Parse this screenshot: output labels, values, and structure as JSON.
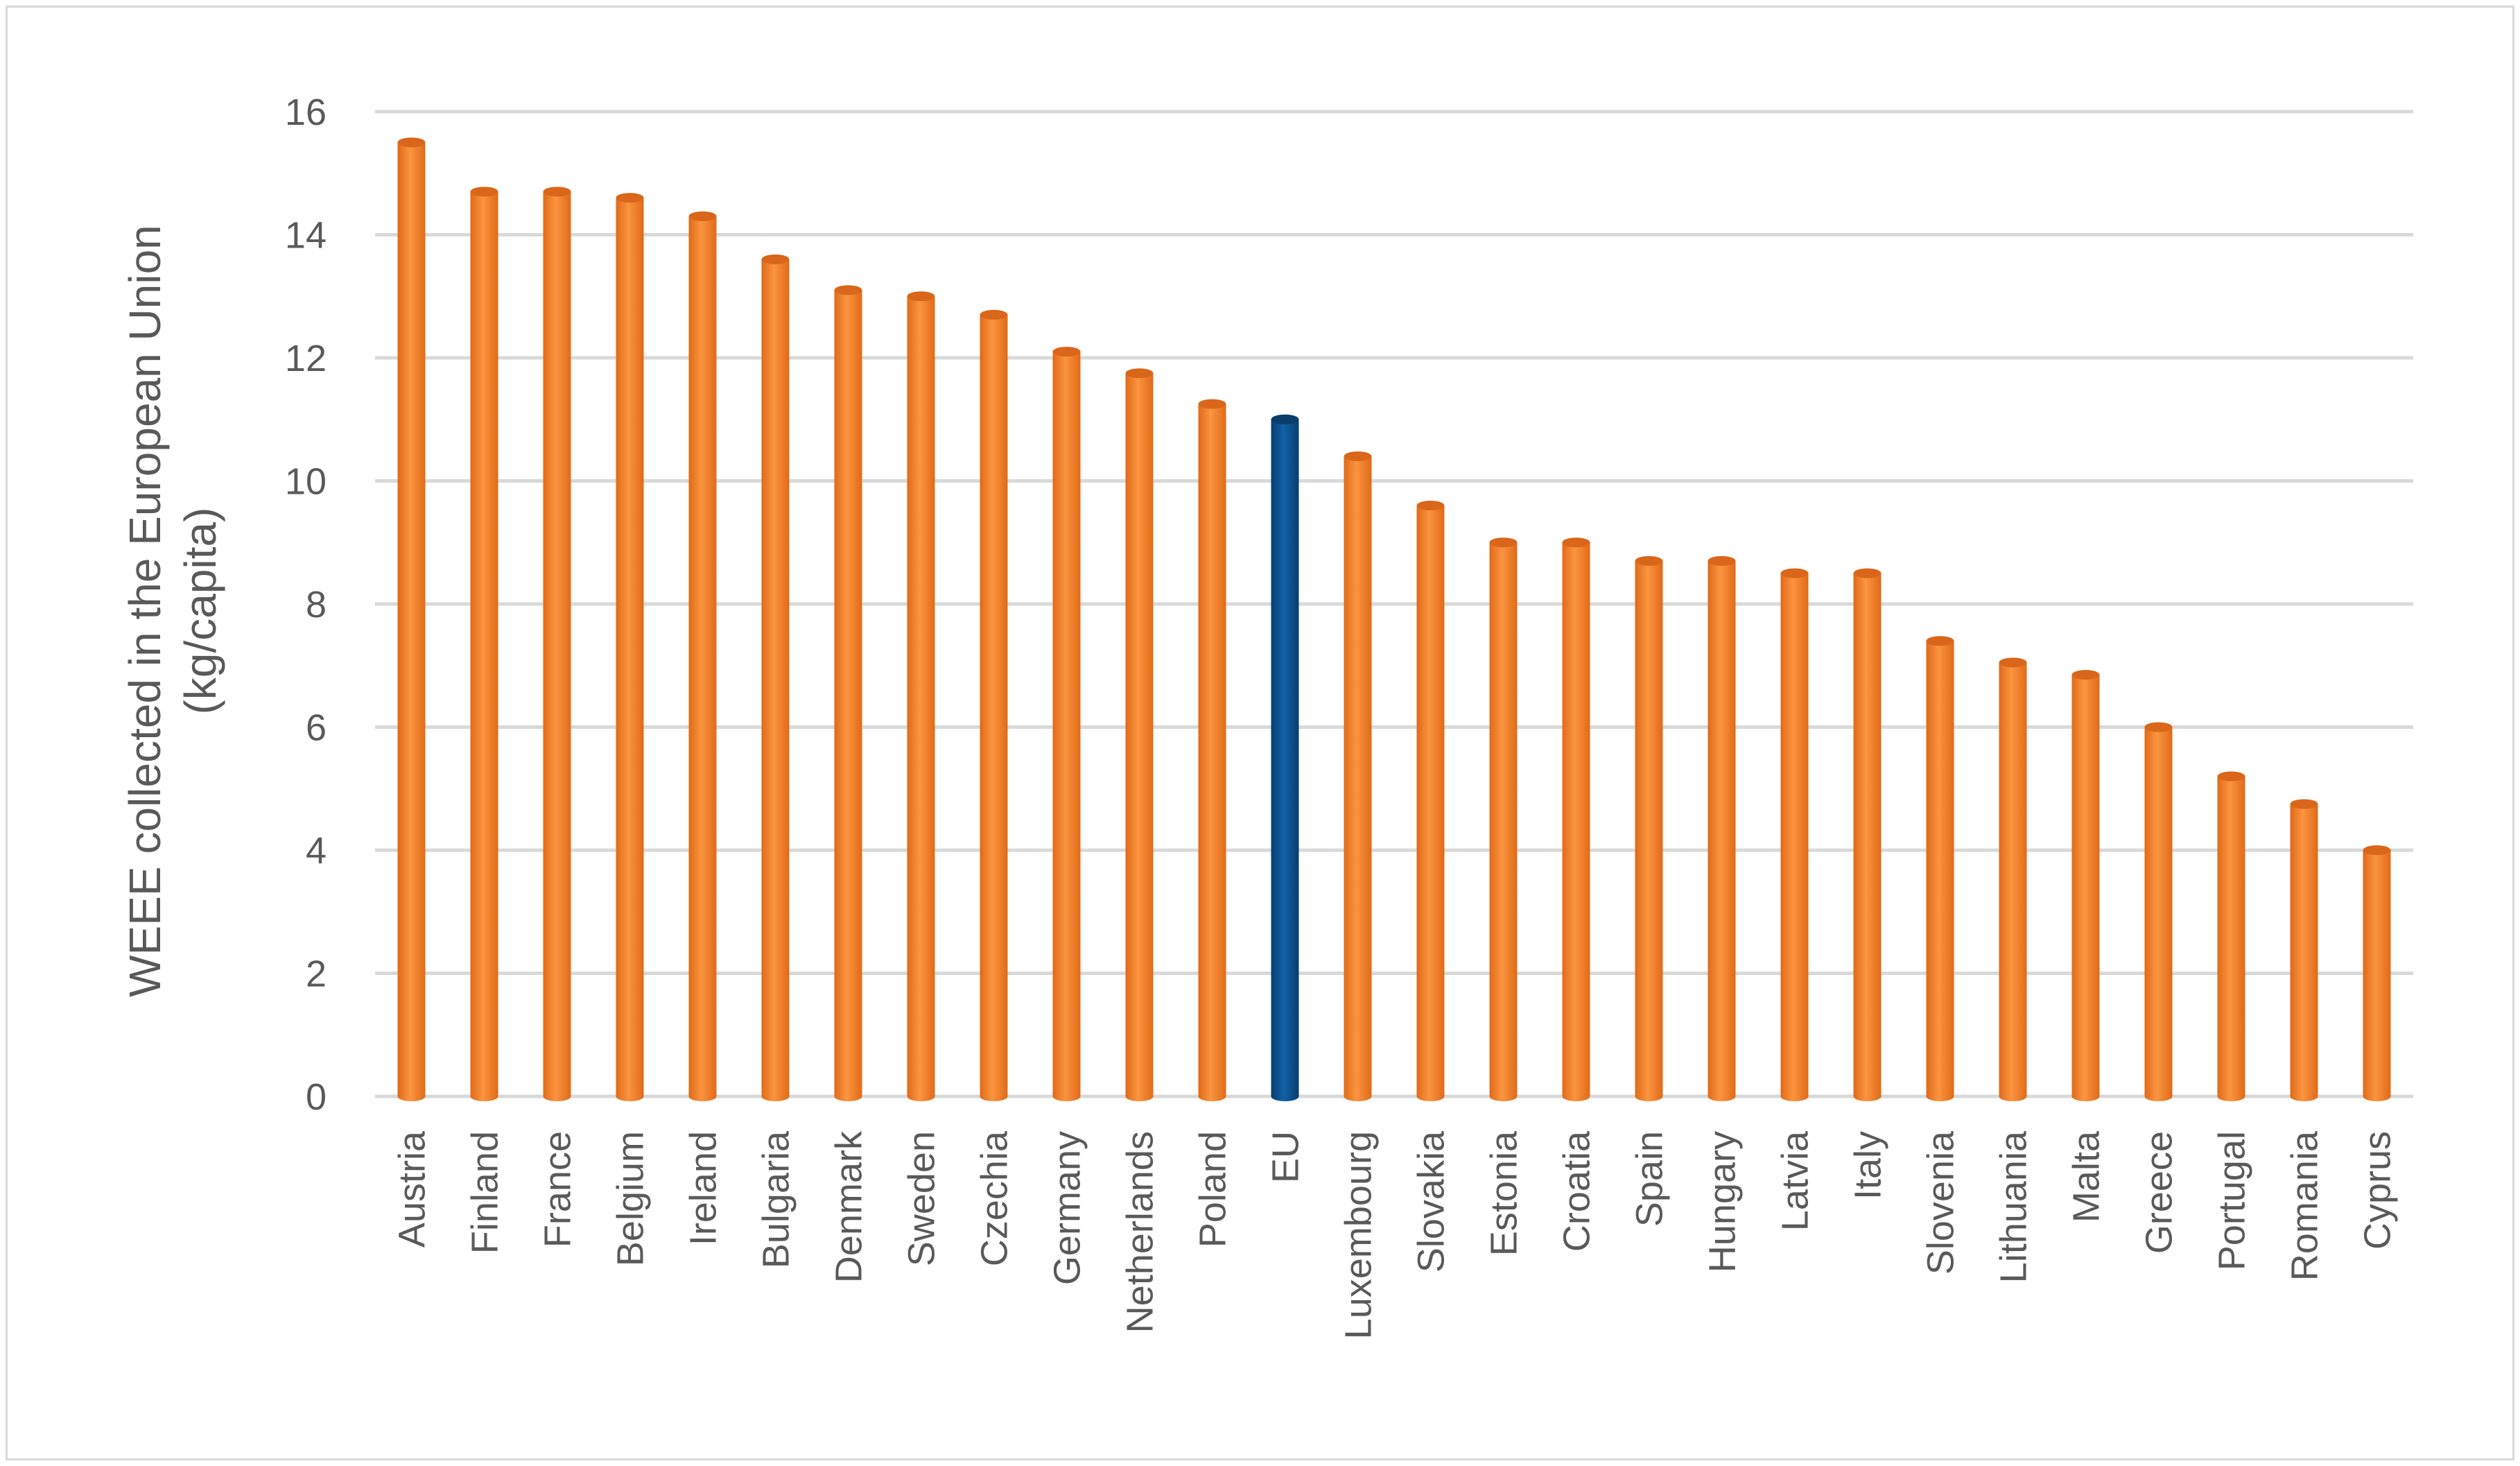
{
  "chart_data": {
    "type": "bar",
    "title": "",
    "xlabel": "",
    "ylabel_line1": "WEEE collected in the European Union",
    "ylabel_line2": "(kg/capita)",
    "ylim": [
      0,
      16
    ],
    "yticks": [
      0,
      2,
      4,
      6,
      8,
      10,
      12,
      14,
      16
    ],
    "grid": true,
    "legend": "none",
    "categories": [
      "Austria",
      "Finland",
      "France",
      "Belgium",
      "Ireland",
      "Bulgaria",
      "Denmark",
      "Sweden",
      "Czechia",
      "Germany",
      "Netherlands",
      "Poland",
      "EU",
      "Luxembourg",
      "Slovakia",
      "Estonia",
      "Croatia",
      "Spain",
      "Hungary",
      "Latvia",
      "Italy",
      "Slovenia",
      "Lithuania",
      "Malta",
      "Greece",
      "Portugal",
      "Romania",
      "Cyprus"
    ],
    "values": [
      15.5,
      14.7,
      14.7,
      14.6,
      14.3,
      13.6,
      13.1,
      13.0,
      12.7,
      12.1,
      11.75,
      11.25,
      11.0,
      10.4,
      9.6,
      9.0,
      9.0,
      8.7,
      8.7,
      8.5,
      8.5,
      7.4,
      7.05,
      6.85,
      6.0,
      5.2,
      4.75,
      4.0
    ],
    "colors": {
      "default_bar": "#f07f24",
      "default_bar_top": "#d9661a",
      "highlight_bar": "#0b4f8a",
      "highlight_bar_top": "#0a3d6b",
      "gridline": "#d9d9d9",
      "text": "#595959"
    },
    "highlight_category": "EU"
  }
}
